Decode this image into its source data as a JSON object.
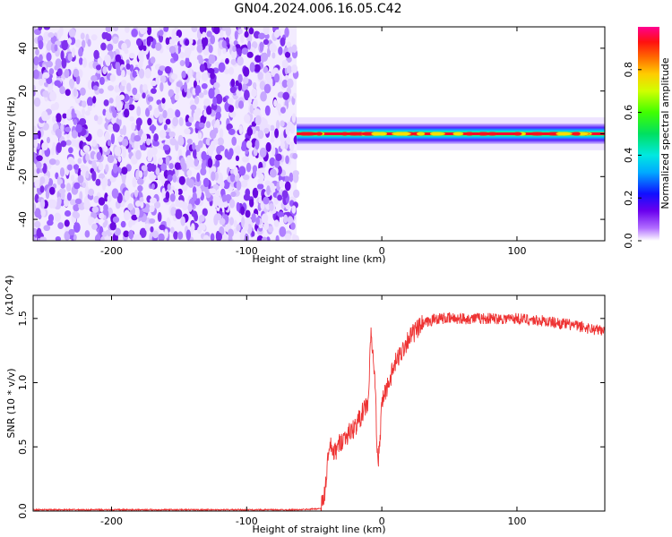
{
  "title": "GN04.2024.006.16.05.C42",
  "chart_data": [
    {
      "type": "heatmap",
      "xlabel": "Height of straight line (km)",
      "ylabel": "Frequency (Hz)",
      "xlim": [
        -258,
        165
      ],
      "ylim": [
        -50,
        50
      ],
      "xticks": [
        -200,
        -100,
        0,
        100
      ],
      "yticks": [
        -40,
        -20,
        0,
        20,
        40
      ],
      "colorbar": {
        "label": "Normalized spectral amplitude",
        "range": [
          0.0,
          1.0
        ],
        "ticks": [
          0.0,
          0.2,
          0.4,
          0.6,
          0.8
        ]
      },
      "regions": [
        {
          "name": "noise",
          "x_range": [
            -258,
            -63
          ],
          "y_range": [
            -50,
            50
          ],
          "amplitude_range": [
            0.0,
            0.15
          ]
        },
        {
          "name": "signal",
          "x_range": [
            -63,
            165
          ],
          "y_center": 0,
          "half_width_hz": 3,
          "peak_amplitude": 1.0
        }
      ]
    },
    {
      "type": "line",
      "xlabel": "Height of straight line (km)",
      "ylabel": "SNR (10 * v/v)",
      "y_scale_label": "(x10^4)",
      "xlim": [
        -258,
        165
      ],
      "ylim": [
        0.0,
        1.68
      ],
      "xticks": [
        -200,
        -100,
        0,
        100
      ],
      "yticks": [
        0.0,
        0.5,
        1.0,
        1.5
      ],
      "color": "#ee3333",
      "series": [
        {
          "x": [
            -258,
            -200,
            -150,
            -100,
            -60,
            -45,
            -42,
            -40,
            -38,
            -35,
            -30,
            -25,
            -20,
            -15,
            -10,
            -8,
            -5,
            -3,
            -1,
            0,
            5,
            10,
            20,
            30,
            40,
            60,
            80,
            100,
            120,
            140,
            165
          ],
          "y": [
            0.01,
            0.01,
            0.01,
            0.01,
            0.01,
            0.02,
            0.15,
            0.4,
            0.5,
            0.45,
            0.55,
            0.6,
            0.65,
            0.75,
            0.85,
            1.4,
            1.0,
            0.35,
            0.6,
            0.85,
            1.0,
            1.15,
            1.35,
            1.45,
            1.5,
            1.5,
            1.5,
            1.5,
            1.48,
            1.45,
            1.4
          ]
        }
      ]
    }
  ]
}
